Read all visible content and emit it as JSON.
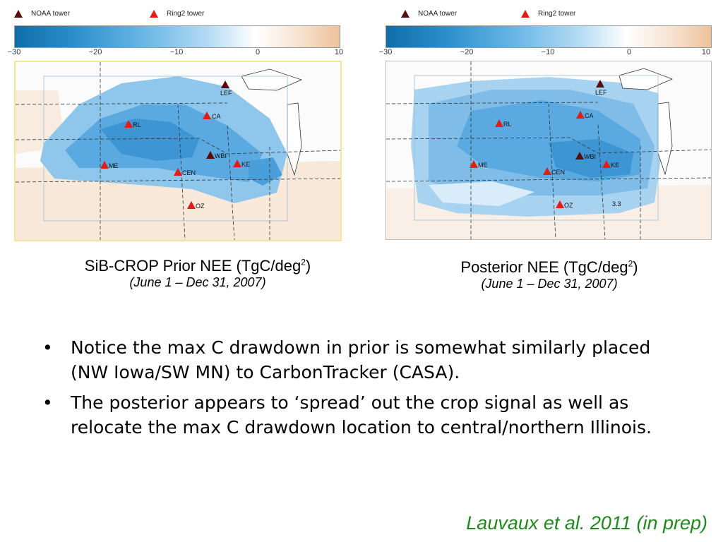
{
  "legend": {
    "noaa_label": "NOAA tower",
    "ring2_label": "Ring2 tower"
  },
  "colorbar": {
    "ticks": [
      "−30",
      "−20",
      "−10",
      "0",
      "10"
    ]
  },
  "colors": {
    "noaa": "#5a0c0c",
    "ring2": "#e21d16",
    "citation": "#1f8a1c"
  },
  "sites": {
    "LEF": "LEF",
    "CA": "CA",
    "RL": "RL",
    "WBI": "WBI",
    "KE": "KE",
    "ME": "ME",
    "CEN": "CEN",
    "OZ": "OZ"
  },
  "prior": {
    "title": "SiB-CROP Prior NEE (TgC/deg",
    "sup": "2",
    "close": ")",
    "period": "(June 1 – Dec 31, 2007)"
  },
  "posterior": {
    "title": "Posterior NEE (TgC/deg",
    "sup": "2",
    "close": ")",
    "period": "(June 1 – Dec 31, 2007)"
  },
  "contour_label": "3.3",
  "bullets": [
    "Notice the max C drawdown in prior is somewhat similarly placed (NW Iowa/SW MN) to CarbonTracker (CASA).",
    "The posterior appears to ‘spread’ out the crop signal as well as relocate the max C drawdown location to central/northern Illinois."
  ],
  "bullet_symbol": "•",
  "citation": "Lauvaux et al. 2011 (in prep)"
}
